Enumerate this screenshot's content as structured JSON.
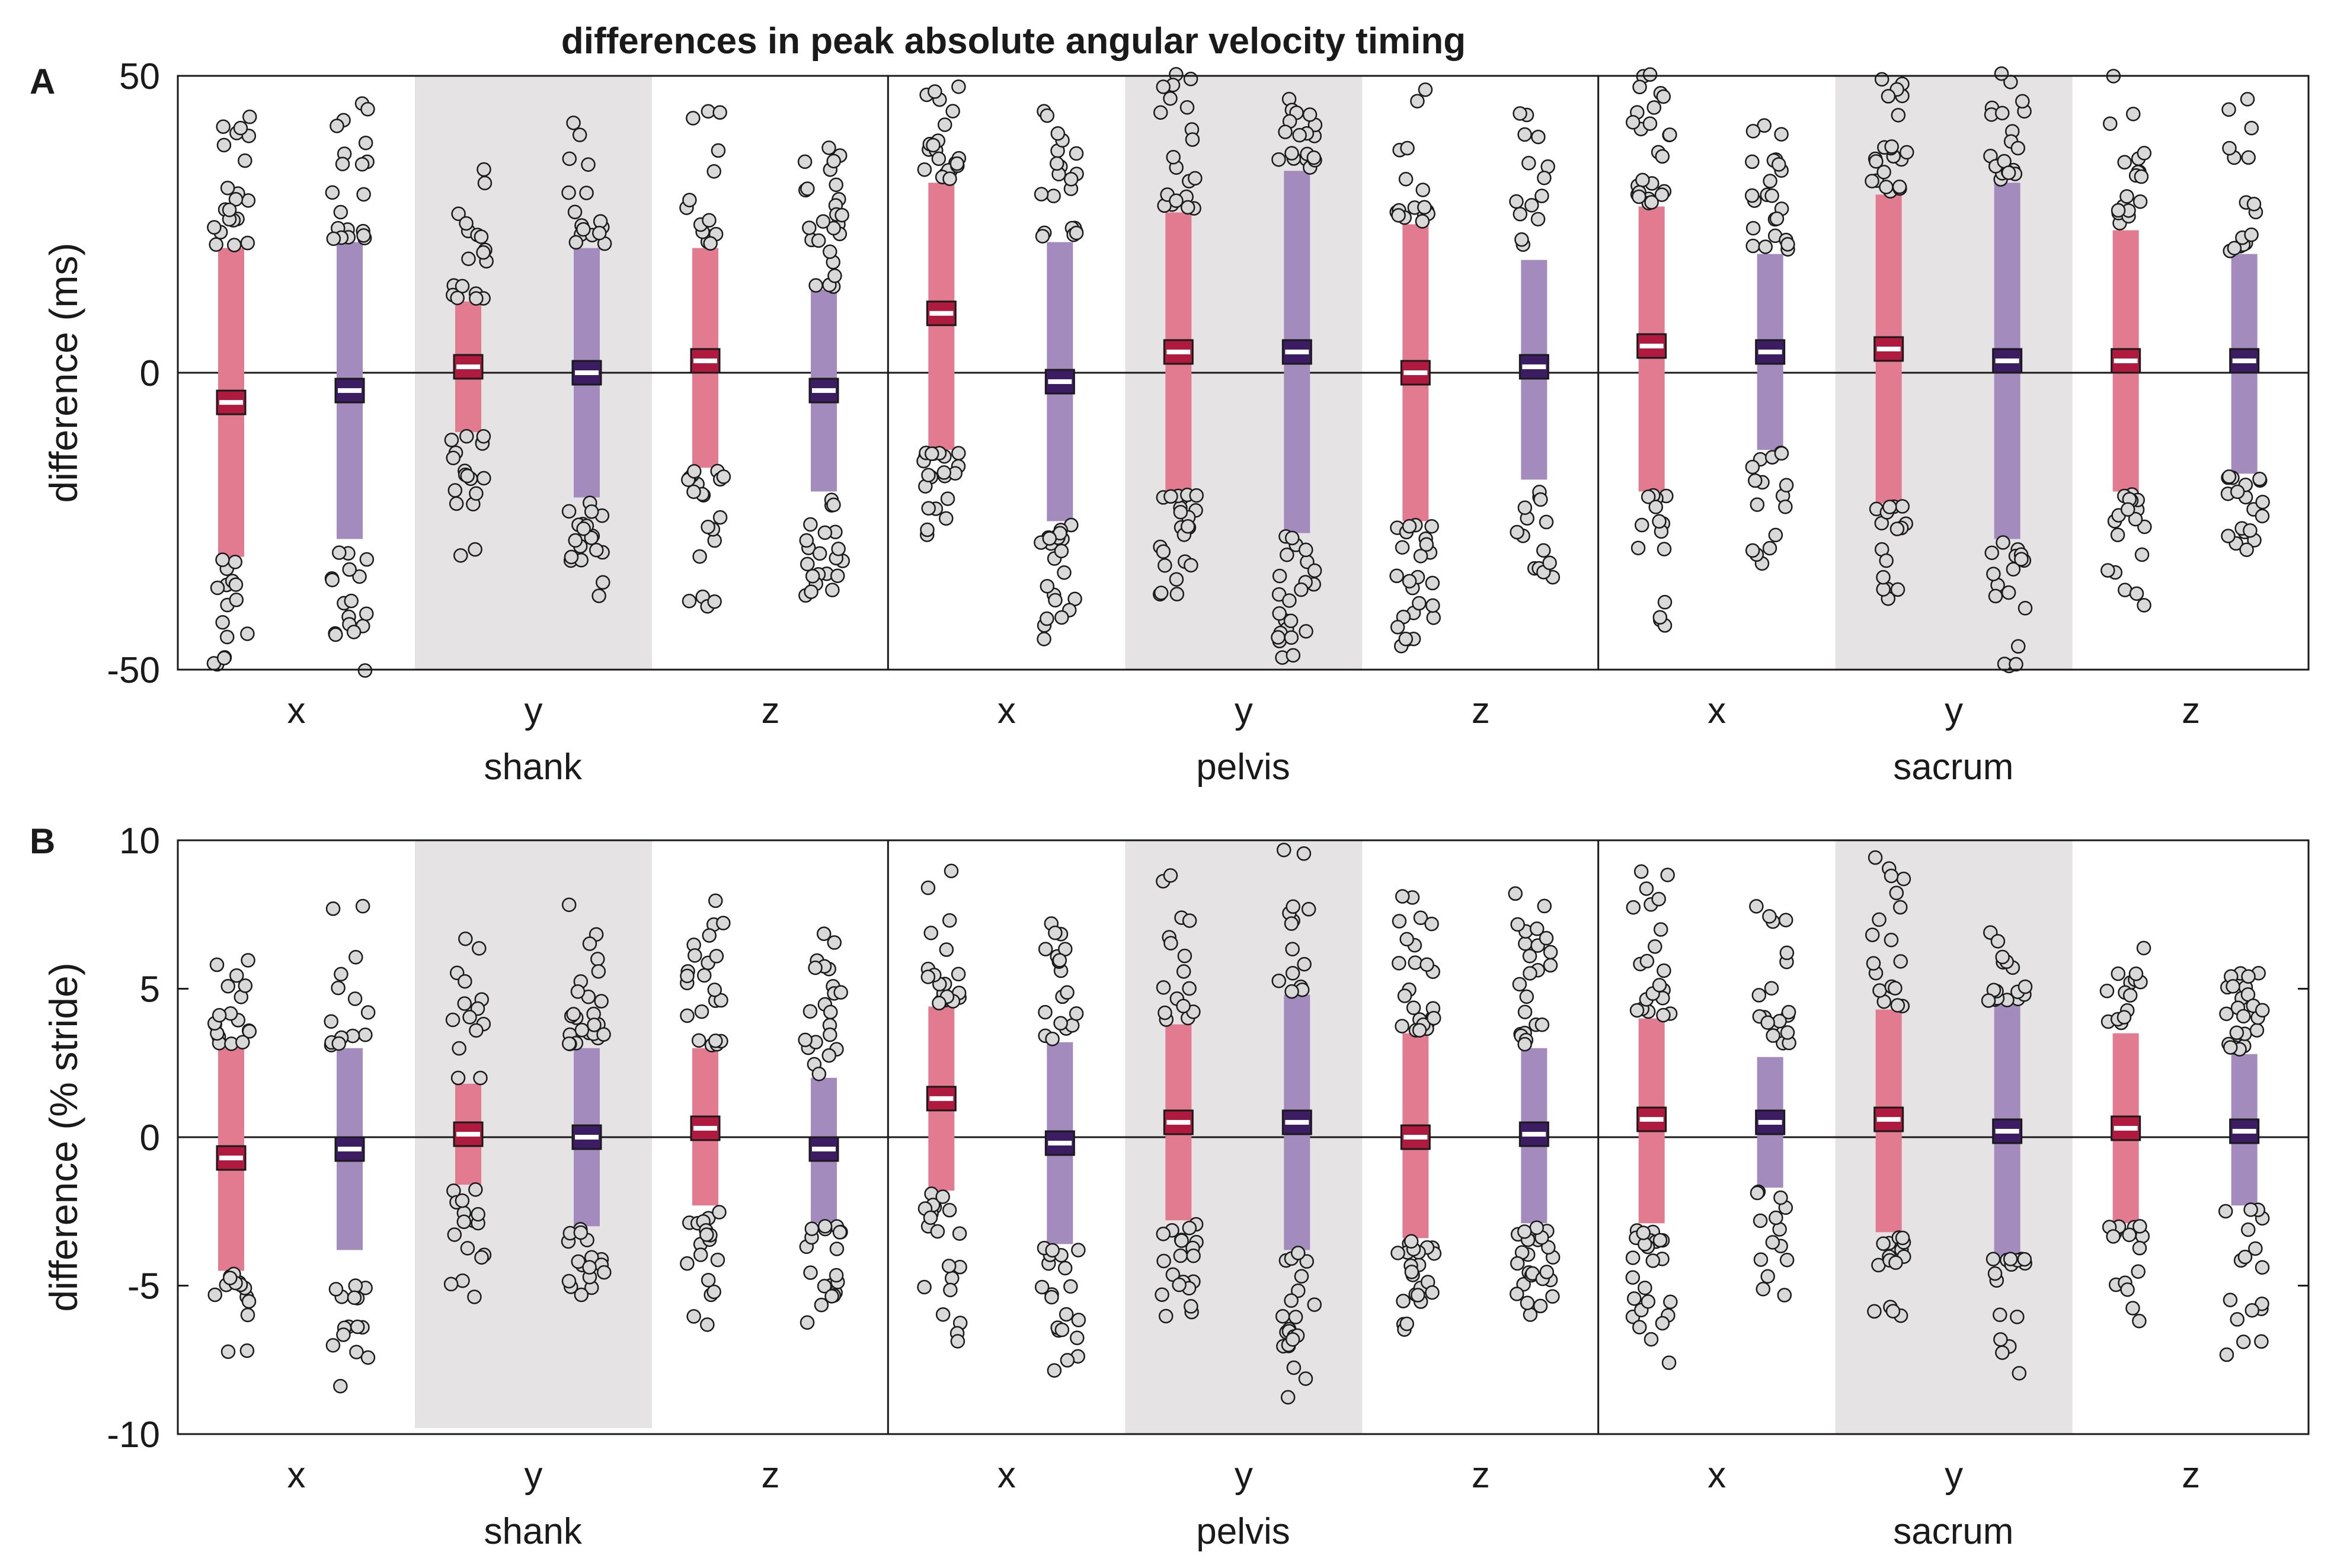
{
  "figure": {
    "title": "differences in peak absolute angular velocity timing",
    "groups": [
      "shank",
      "pelvis",
      "sacrum"
    ],
    "axes_labels": [
      "x",
      "y",
      "z"
    ],
    "colors": {
      "red_bar": "#e27a90",
      "purple_bar": "#a48bbd",
      "red_marker": "#b01a3e",
      "purple_marker": "#3c1d63",
      "shade": "#e6e3e5",
      "point_fill": "#d9d9d9",
      "ink": "#1a1a1a"
    }
  },
  "chart_data": [
    {
      "type": "scatter",
      "panel": "A",
      "ylabel": "difference (ms)",
      "ylim": [
        -50,
        50
      ],
      "yticks": [
        50,
        0,
        -50
      ],
      "ytick_labels": [
        "50",
        "0",
        "-50"
      ],
      "series_names": [
        "red",
        "purple"
      ],
      "columns": [
        {
          "group": "shank",
          "axis": "x",
          "series": "red",
          "median": -5,
          "lo": -31,
          "hi": 21
        },
        {
          "group": "shank",
          "axis": "x",
          "series": "purple",
          "median": -3,
          "lo": -28,
          "hi": 22
        },
        {
          "group": "shank",
          "axis": "y",
          "series": "red",
          "median": 1,
          "lo": -10,
          "hi": 12
        },
        {
          "group": "shank",
          "axis": "y",
          "series": "purple",
          "median": 0,
          "lo": -21,
          "hi": 21
        },
        {
          "group": "shank",
          "axis": "z",
          "series": "red",
          "median": 2,
          "lo": -16,
          "hi": 21
        },
        {
          "group": "shank",
          "axis": "z",
          "series": "purple",
          "median": -3,
          "lo": -20,
          "hi": 14
        },
        {
          "group": "pelvis",
          "axis": "x",
          "series": "red",
          "median": 10,
          "lo": -13,
          "hi": 32
        },
        {
          "group": "pelvis",
          "axis": "x",
          "series": "purple",
          "median": -1.5,
          "lo": -25,
          "hi": 22
        },
        {
          "group": "pelvis",
          "axis": "y",
          "series": "red",
          "median": 3.5,
          "lo": -20,
          "hi": 27
        },
        {
          "group": "pelvis",
          "axis": "y",
          "series": "purple",
          "median": 3.5,
          "lo": -27,
          "hi": 34
        },
        {
          "group": "pelvis",
          "axis": "z",
          "series": "red",
          "median": 0,
          "lo": -25,
          "hi": 25
        },
        {
          "group": "pelvis",
          "axis": "z",
          "series": "purple",
          "median": 1,
          "lo": -18,
          "hi": 19
        },
        {
          "group": "sacrum",
          "axis": "x",
          "series": "red",
          "median": 4.5,
          "lo": -20,
          "hi": 28
        },
        {
          "group": "sacrum",
          "axis": "x",
          "series": "purple",
          "median": 3.5,
          "lo": -13,
          "hi": 20
        },
        {
          "group": "sacrum",
          "axis": "y",
          "series": "red",
          "median": 4,
          "lo": -22,
          "hi": 30
        },
        {
          "group": "sacrum",
          "axis": "y",
          "series": "purple",
          "median": 2,
          "lo": -28,
          "hi": 32
        },
        {
          "group": "sacrum",
          "axis": "z",
          "series": "red",
          "median": 2,
          "lo": -20,
          "hi": 24
        },
        {
          "group": "sacrum",
          "axis": "z",
          "series": "purple",
          "median": 2,
          "lo": -17,
          "hi": 20
        }
      ]
    },
    {
      "type": "scatter",
      "panel": "B",
      "ylabel": "difference (% stride)",
      "ylim": [
        -10,
        10
      ],
      "yticks": [
        10,
        5,
        0,
        -5,
        -10
      ],
      "ytick_labels": [
        "10",
        "5",
        "0",
        "-5",
        "-10"
      ],
      "series_names": [
        "red",
        "purple"
      ],
      "columns": [
        {
          "group": "shank",
          "axis": "x",
          "series": "red",
          "median": -0.7,
          "lo": -4.5,
          "hi": 3.0
        },
        {
          "group": "shank",
          "axis": "x",
          "series": "purple",
          "median": -0.4,
          "lo": -3.8,
          "hi": 3.0
        },
        {
          "group": "shank",
          "axis": "y",
          "series": "red",
          "median": 0.1,
          "lo": -1.6,
          "hi": 1.8
        },
        {
          "group": "shank",
          "axis": "y",
          "series": "purple",
          "median": 0.0,
          "lo": -3.0,
          "hi": 3.0
        },
        {
          "group": "shank",
          "axis": "z",
          "series": "red",
          "median": 0.3,
          "lo": -2.3,
          "hi": 3.0
        },
        {
          "group": "shank",
          "axis": "z",
          "series": "purple",
          "median": -0.4,
          "lo": -2.9,
          "hi": 2.0
        },
        {
          "group": "pelvis",
          "axis": "x",
          "series": "red",
          "median": 1.3,
          "lo": -1.8,
          "hi": 4.4
        },
        {
          "group": "pelvis",
          "axis": "x",
          "series": "purple",
          "median": -0.2,
          "lo": -3.6,
          "hi": 3.2
        },
        {
          "group": "pelvis",
          "axis": "y",
          "series": "red",
          "median": 0.5,
          "lo": -2.8,
          "hi": 3.8
        },
        {
          "group": "pelvis",
          "axis": "y",
          "series": "purple",
          "median": 0.5,
          "lo": -3.8,
          "hi": 4.8
        },
        {
          "group": "pelvis",
          "axis": "z",
          "series": "red",
          "median": 0.0,
          "lo": -3.4,
          "hi": 3.5
        },
        {
          "group": "pelvis",
          "axis": "z",
          "series": "purple",
          "median": 0.1,
          "lo": -2.9,
          "hi": 3.0
        },
        {
          "group": "sacrum",
          "axis": "x",
          "series": "red",
          "median": 0.6,
          "lo": -2.9,
          "hi": 4.0
        },
        {
          "group": "sacrum",
          "axis": "x",
          "series": "purple",
          "median": 0.5,
          "lo": -1.7,
          "hi": 2.7
        },
        {
          "group": "sacrum",
          "axis": "y",
          "series": "red",
          "median": 0.6,
          "lo": -3.2,
          "hi": 4.3
        },
        {
          "group": "sacrum",
          "axis": "y",
          "series": "purple",
          "median": 0.2,
          "lo": -4.0,
          "hi": 4.5
        },
        {
          "group": "sacrum",
          "axis": "z",
          "series": "red",
          "median": 0.3,
          "lo": -2.9,
          "hi": 3.5
        },
        {
          "group": "sacrum",
          "axis": "z",
          "series": "purple",
          "median": 0.2,
          "lo": -2.3,
          "hi": 2.8
        }
      ]
    }
  ]
}
